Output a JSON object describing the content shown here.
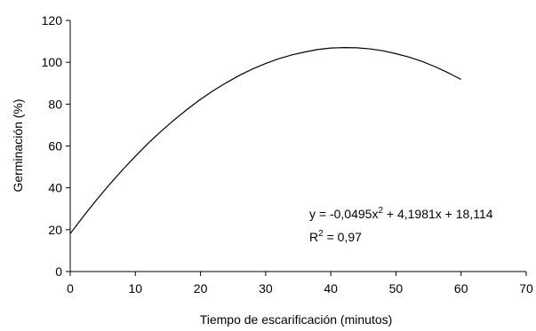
{
  "chart_data": {
    "type": "line",
    "title": "",
    "xlabel": "Tiempo de escarificación (minutos)",
    "ylabel": "Germinación (%)",
    "xlim": [
      0,
      70
    ],
    "ylim": [
      0,
      120
    ],
    "xticks": [
      0,
      10,
      20,
      30,
      40,
      50,
      60,
      70
    ],
    "yticks": [
      0,
      20,
      40,
      60,
      80,
      100,
      120
    ],
    "grid": false,
    "legend": "none",
    "series": [
      {
        "x": [
          0,
          2,
          4,
          6,
          8,
          10,
          12,
          14,
          16,
          18,
          20,
          22,
          24,
          26,
          28,
          30,
          32,
          34,
          36,
          38,
          40,
          42,
          44,
          46,
          48,
          50,
          52,
          54,
          56,
          58,
          60
        ],
        "y": [
          18.1,
          26.3,
          34.1,
          41.5,
          48.5,
          55.1,
          61.4,
          67.2,
          72.6,
          77.6,
          82.3,
          86.5,
          90.3,
          93.8,
          96.8,
          99.4,
          101.7,
          103.5,
          104.9,
          106.1,
          106.8,
          107.0,
          106.9,
          106.4,
          105.5,
          104.1,
          102.5,
          100.4,
          97.9,
          95.0,
          91.8
        ],
        "color": "#000000"
      }
    ],
    "annotation": {
      "eq_prefix": "y = -0,0495x",
      "eq_sup": "2",
      "eq_suffix": " + 4,1981x + 18,114",
      "r_prefix": "R",
      "r_sup": "2",
      "r_suffix": " = 0,97"
    }
  }
}
